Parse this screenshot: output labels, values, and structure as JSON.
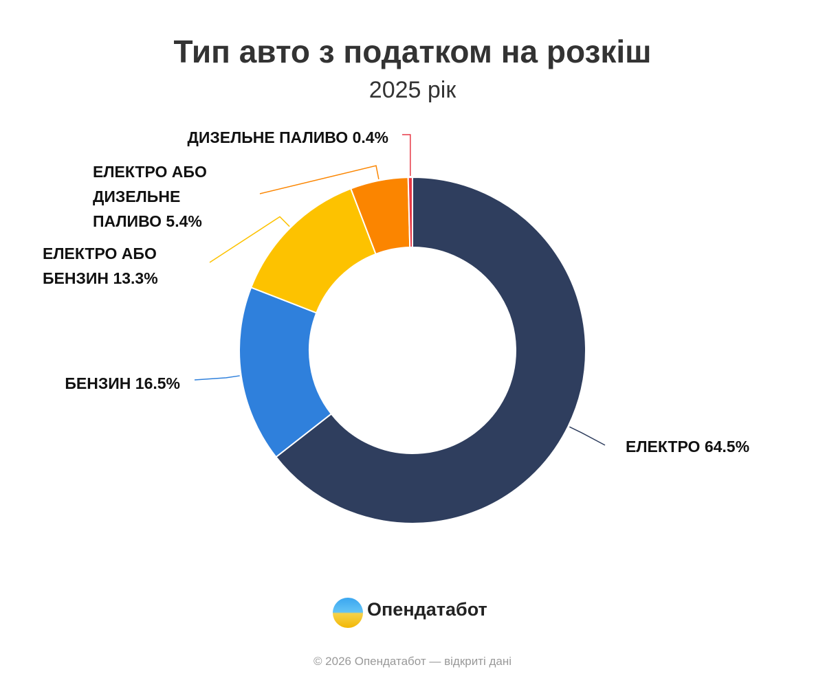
{
  "chart_data": {
    "type": "donut",
    "title": "Тип авто з податком на розкіш",
    "subtitle": "2025 рік",
    "categories": [
      "ЕЛЕКТРО",
      "БЕНЗИН",
      "ЕЛЕКТРО АБО БЕНЗИН",
      "ЕЛЕКТРО АБО ДИЗЕЛЬНЕ ПАЛИВО",
      "ДИЗЕЛЬНЕ ПАЛИВО"
    ],
    "values": [
      64.5,
      16.5,
      13.3,
      5.4,
      0.4
    ],
    "value_labels": [
      "64.5%",
      "16.5%",
      "13.3%",
      "5.4%",
      "0.4%"
    ],
    "colors": [
      "#2f3e5e",
      "#2f80dc",
      "#fdc200",
      "#fb8500",
      "#e63946"
    ]
  },
  "footer": {
    "brand": "Опендатабот",
    "copyright": "© 2026 Опендатабот — відкриті дані"
  }
}
